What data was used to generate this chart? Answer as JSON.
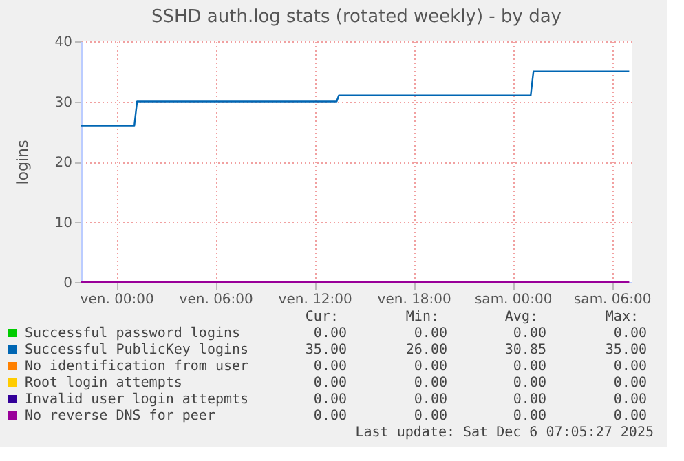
{
  "chart_data": {
    "type": "line",
    "title": "SSHD auth.log stats (rotated weekly) - by day",
    "ylabel": "logins",
    "x": [
      "2025-12-04T21:52",
      "2025-12-05T01:05",
      "2025-12-05T01:15",
      "2025-12-05T13:20",
      "2025-12-05T13:28",
      "2025-12-06T01:05",
      "2025-12-06T01:15",
      "2025-12-06T07:03"
    ],
    "series": [
      {
        "name": "Successful password logins",
        "color": "#00cc00",
        "values": [
          null,
          null,
          null,
          null,
          null,
          null,
          null,
          null
        ]
      },
      {
        "name": "Successful PublicKey logins",
        "color": "#0066b3",
        "values": [
          26,
          26,
          30,
          30,
          31,
          31,
          35,
          35
        ]
      },
      {
        "name": "No identification from user",
        "color": "#ff8000",
        "values": [
          null,
          null,
          null,
          null,
          null,
          null,
          null,
          null
        ]
      },
      {
        "name": "Root login attempts",
        "color": "#ffcc00",
        "values": [
          null,
          null,
          null,
          null,
          null,
          null,
          null,
          null
        ]
      },
      {
        "name": "Invalid user login attepmts",
        "color": "#330099",
        "values": [
          null,
          null,
          null,
          null,
          null,
          null,
          null,
          null
        ]
      },
      {
        "name": "No reverse DNS for peer",
        "color": "#990099",
        "values": [
          0,
          0,
          0,
          0,
          0,
          0,
          0,
          0
        ]
      }
    ],
    "xlim": [
      "2025-12-04T21:52",
      "2025-12-06T07:12"
    ],
    "xticks": [
      {
        "value": "2025-12-05T00:00",
        "label": "ven. 00:00"
      },
      {
        "value": "2025-12-05T06:00",
        "label": "ven. 06:00"
      },
      {
        "value": "2025-12-05T12:00",
        "label": "ven. 12:00"
      },
      {
        "value": "2025-12-05T18:00",
        "label": "ven. 18:00"
      },
      {
        "value": "2025-12-06T00:00",
        "label": "sam. 00:00"
      },
      {
        "value": "2025-12-06T06:00",
        "label": "sam. 06:00"
      }
    ],
    "ylim": [
      0,
      40
    ],
    "yticks": [
      0,
      10,
      20,
      30,
      40
    ],
    "grid": true,
    "legend": "bottom",
    "annotations": [
      "Cur:",
      "Min:",
      "Avg:",
      "Max:",
      "0.00",
      "0.00",
      "0.00",
      "0.00",
      "35.00",
      "26.00",
      "30.85",
      "35.00",
      "0.00",
      "0.00",
      "0.00",
      "0.00",
      "0.00",
      "0.00",
      "0.00",
      "0.00",
      "0.00",
      "0.00",
      "0.00",
      "0.00",
      "0.00",
      "0.00",
      "0.00",
      "0.00",
      "Last update: Sat Dec  6 07:05:27 2025"
    ]
  }
}
